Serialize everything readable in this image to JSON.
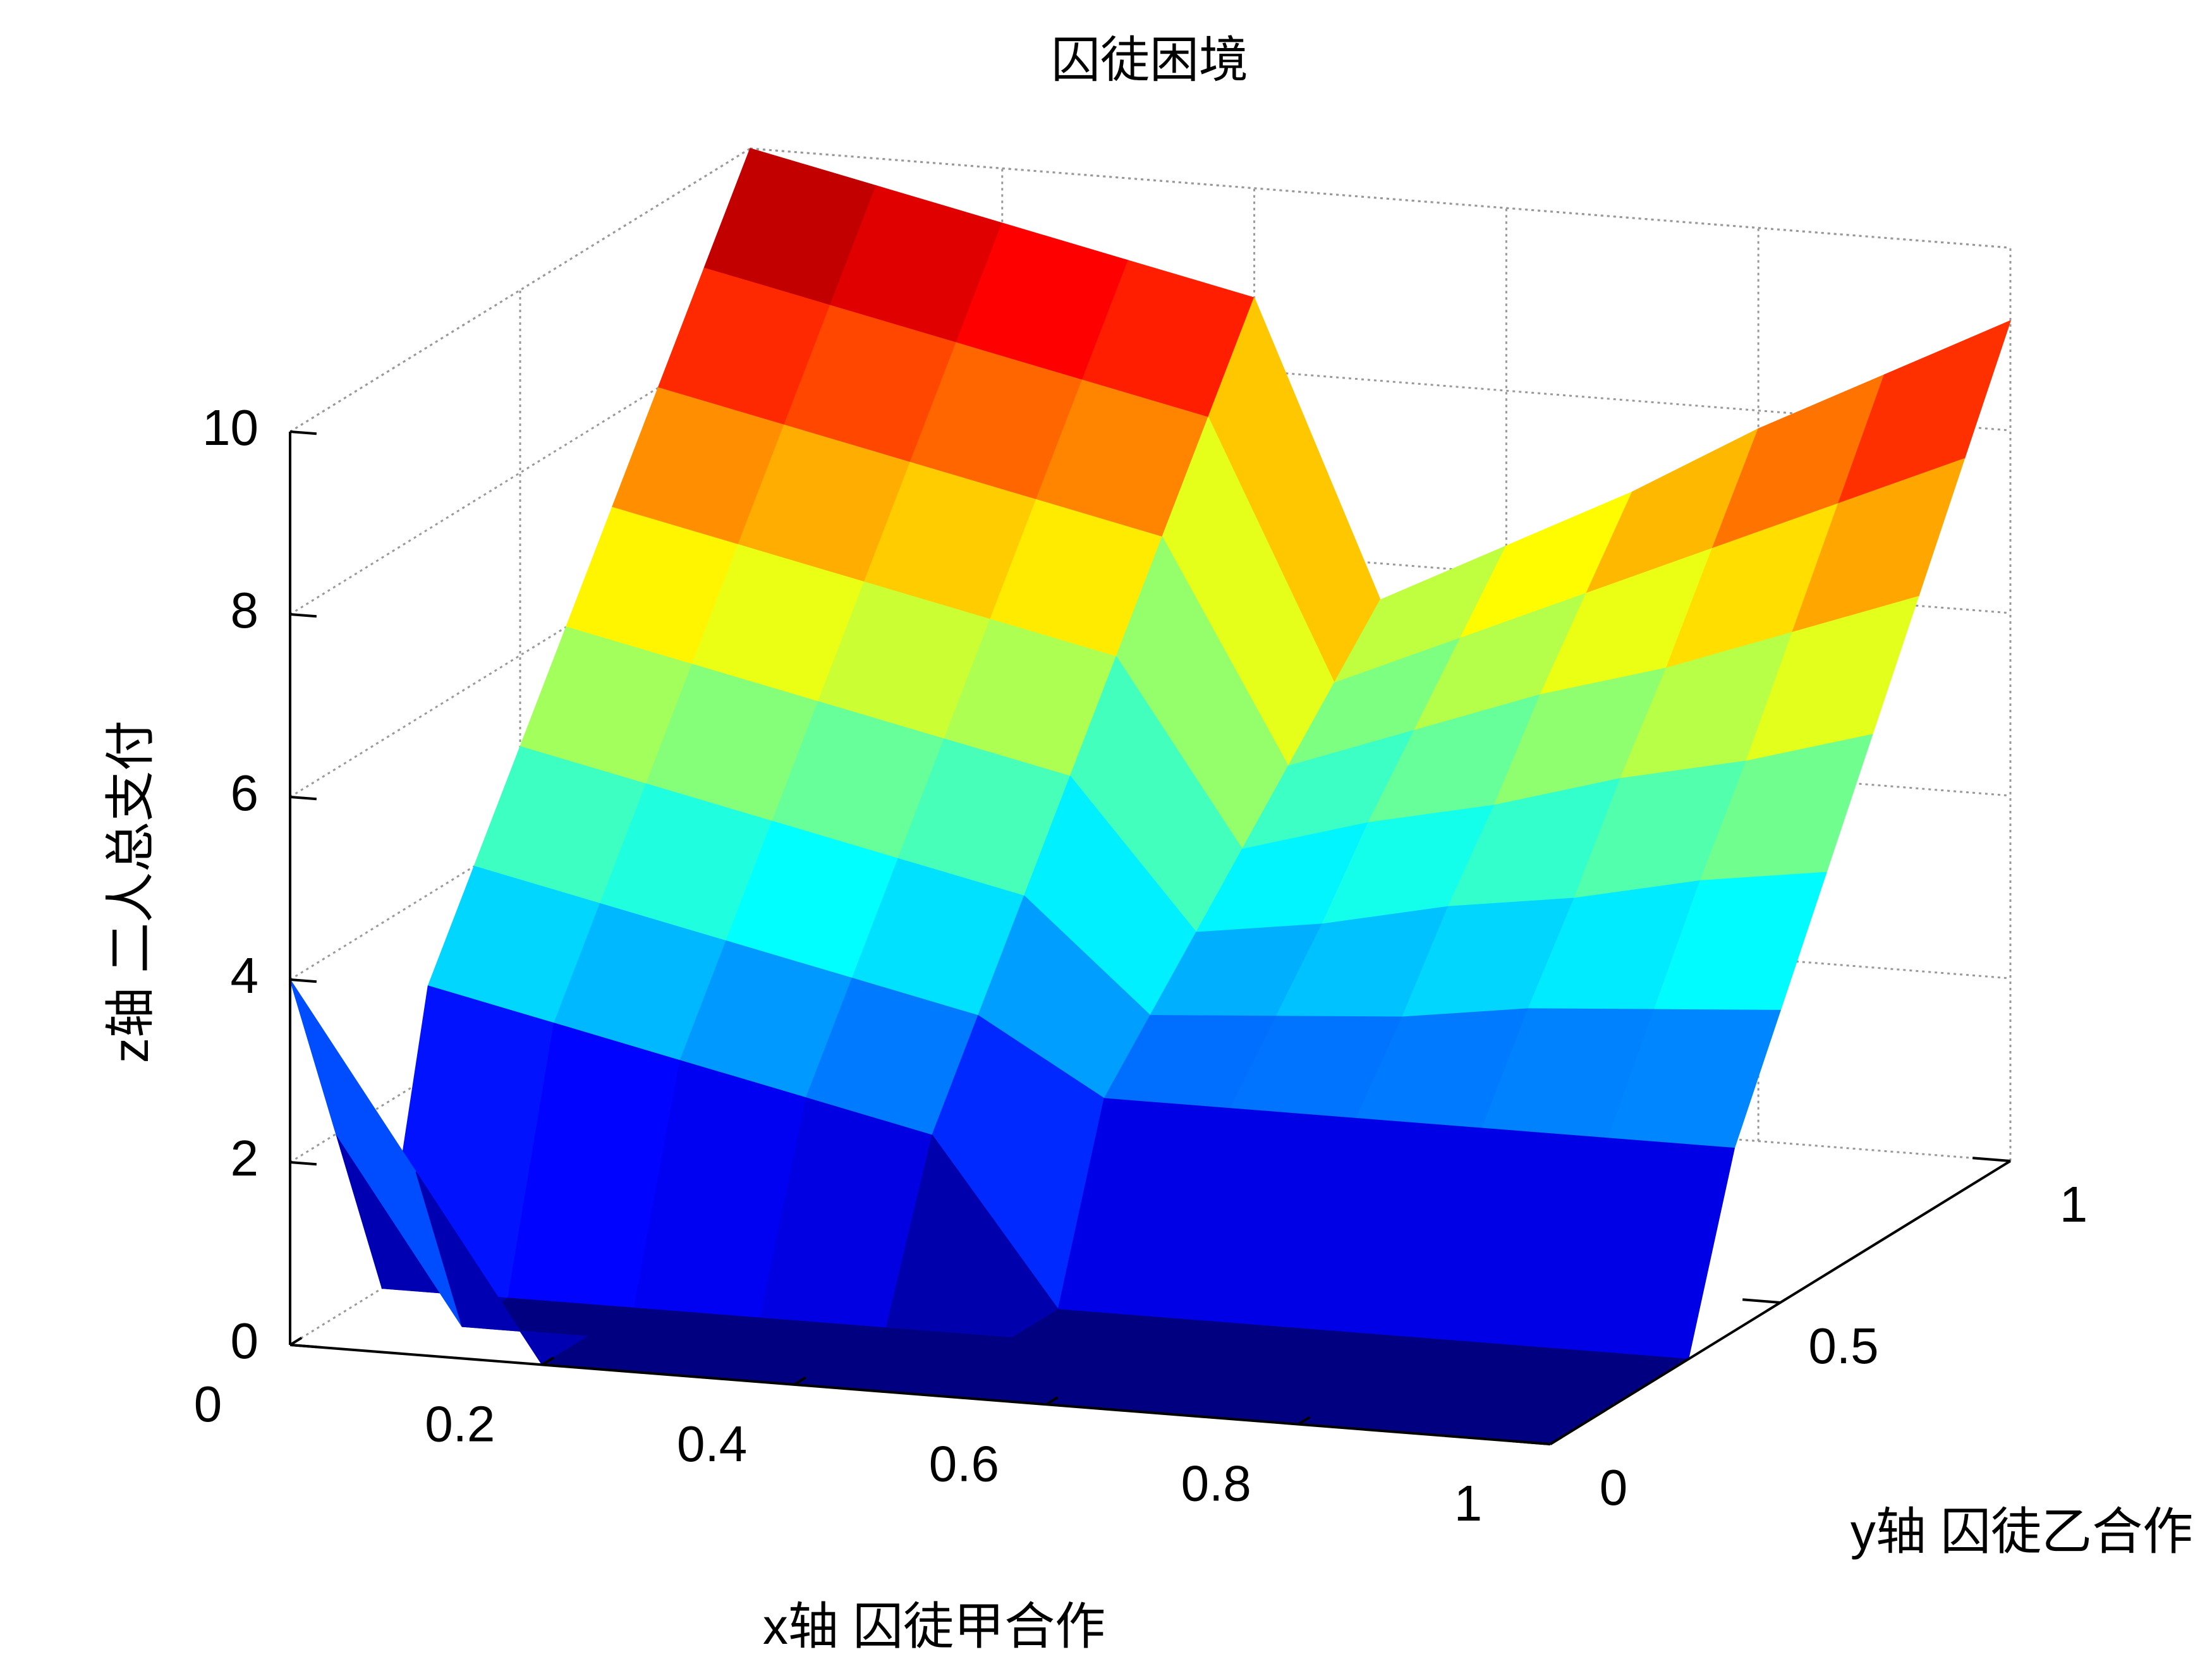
{
  "chart_data": {
    "type": "surface",
    "title": "囚徒困境",
    "x_label": "x轴 囚徒甲合作",
    "y_label": "y轴 囚徒乙合作",
    "z_label": "z轴 二人总支付",
    "x": [
      0,
      0.1,
      0.2,
      0.3,
      0.4,
      0.5,
      0.6,
      0.7,
      0.8,
      0.9,
      1
    ],
    "y": [
      0,
      0.1,
      0.2,
      0.3,
      0.4,
      0.5,
      0.6,
      0.7,
      0.8,
      0.9,
      1
    ],
    "z": [
      [
        4,
        2,
        0,
        0,
        0,
        0,
        0,
        0,
        0,
        0,
        0
      ],
      [
        2,
        0,
        0,
        0,
        0,
        0,
        0,
        0,
        0,
        0,
        0
      ],
      [
        0,
        0,
        0,
        0,
        0,
        0,
        0,
        0,
        0,
        0,
        0
      ],
      [
        3,
        2.7,
        2.4,
        2.1,
        1.8,
        0,
        0,
        0,
        0,
        0,
        0
      ],
      [
        4,
        3.7,
        3.4,
        3.1,
        2.8,
        2,
        2,
        2,
        2,
        2,
        2
      ],
      [
        5,
        4.7,
        4.4,
        4.1,
        3.8,
        2.6,
        2.7,
        2.8,
        3,
        3.1,
        3.2
      ],
      [
        6,
        5.7,
        5.4,
        5.1,
        4.8,
        3.2,
        3.4,
        3.7,
        3.9,
        4.2,
        4.4
      ],
      [
        7,
        6.7,
        6.4,
        6.1,
        5.8,
        3.8,
        4.2,
        4.5,
        4.9,
        5.2,
        5.6
      ],
      [
        8,
        7.7,
        7.4,
        7.1,
        6.8,
        4.4,
        4.9,
        5.4,
        5.8,
        6.3,
        6.8
      ],
      [
        9,
        8.7,
        8.4,
        8.1,
        7.8,
        5,
        5.6,
        6.2,
        6.8,
        7.4,
        8
      ],
      [
        10,
        9.7,
        9.4,
        9.1,
        8.8,
        5.6,
        6.3,
        7,
        7.8,
        8.5,
        9.2
      ]
    ],
    "colormap": "jet",
    "xlim": [
      0,
      1
    ],
    "ylim": [
      0,
      1
    ],
    "zlim": [
      0,
      10
    ],
    "xticks": [
      0,
      0.2,
      0.4,
      0.6,
      0.8,
      1
    ],
    "yticks": [
      0,
      0.5,
      1
    ],
    "zticks": [
      0,
      2,
      4,
      6,
      8,
      10
    ],
    "grid": true
  }
}
